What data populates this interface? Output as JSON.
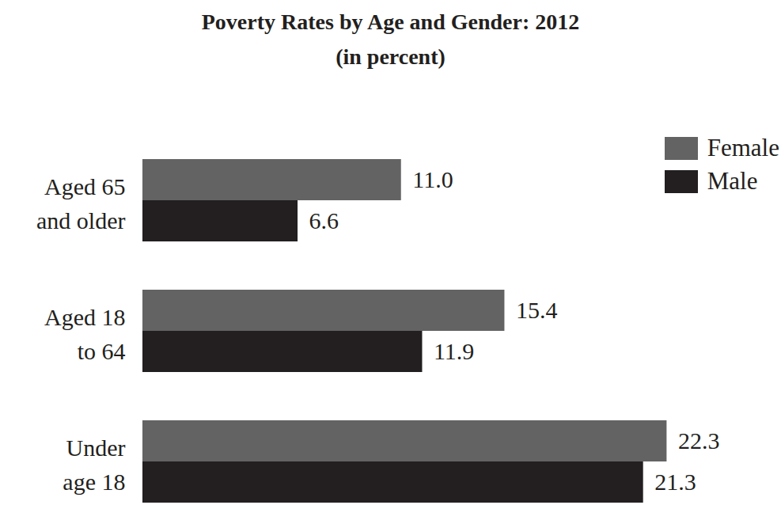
{
  "chart_data": {
    "type": "bar",
    "title": "Poverty Rates by Age and Gender: 2012",
    "subtitle": "(in percent)",
    "orientation": "horizontal",
    "categories": [
      "Aged 65\nand older",
      "Aged 18\nto 64",
      "Under\nage 18"
    ],
    "series": [
      {
        "name": "Female",
        "color": "#636363",
        "values": [
          11.0,
          15.4,
          22.3
        ],
        "value_labels": [
          "11.0",
          "15.4",
          "22.3"
        ]
      },
      {
        "name": "Male",
        "color": "#231f20",
        "values": [
          6.6,
          11.9,
          21.3
        ],
        "value_labels": [
          "6.6",
          "11.9",
          "21.3"
        ]
      }
    ],
    "xlim": [
      0,
      27
    ],
    "data_labels": true,
    "legend": "top-right",
    "tick_labels": "y",
    "grid": false
  }
}
